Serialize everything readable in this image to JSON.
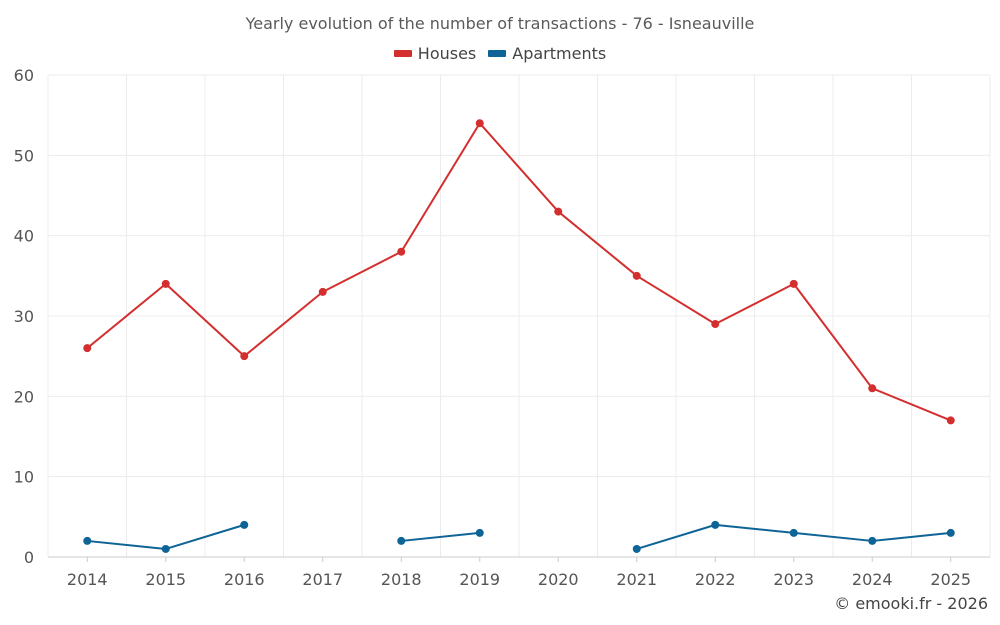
{
  "colors": {
    "houses": "#d32f2f",
    "apartments": "#0e6496",
    "grid": "#ececec",
    "axis": "#cccccc"
  },
  "credit": "© emooki.fr - 2026",
  "chart_data": {
    "type": "line",
    "title": "Yearly evolution of the number of transactions - 76 - Isneauville",
    "xlabel": "",
    "ylabel": "",
    "categories": [
      "2014",
      "2015",
      "2016",
      "2017",
      "2018",
      "2019",
      "2020",
      "2021",
      "2022",
      "2023",
      "2024",
      "2025"
    ],
    "ylim": [
      0,
      60
    ],
    "yticks": [
      0,
      10,
      20,
      30,
      40,
      50,
      60
    ],
    "grid": true,
    "legend_position": "top-center",
    "series": [
      {
        "name": "Houses",
        "color_key": "houses",
        "values": [
          26,
          34,
          25,
          33,
          38,
          54,
          43,
          35,
          29,
          34,
          21,
          17
        ]
      },
      {
        "name": "Apartments",
        "color_key": "apartments",
        "values": [
          2,
          1,
          4,
          null,
          2,
          3,
          null,
          1,
          4,
          3,
          2,
          3
        ]
      }
    ]
  }
}
